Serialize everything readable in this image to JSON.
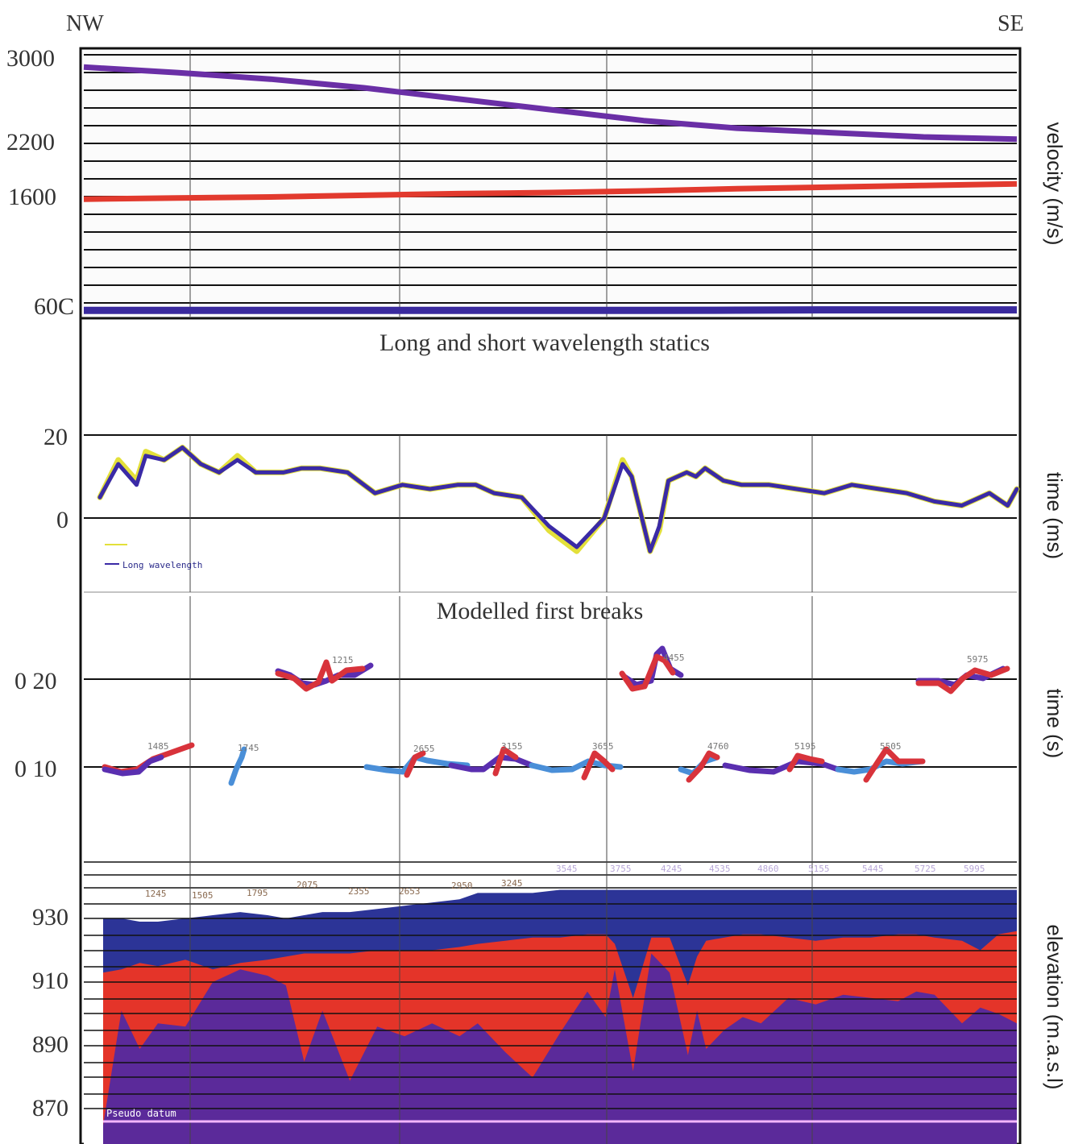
{
  "header": {
    "left": "NW",
    "right": "SE"
  },
  "panels": {
    "velocity": {
      "ylabel": "velocity (m/s)",
      "ticks": [
        "3000",
        "2200",
        "1600",
        "60C"
      ],
      "colors": {
        "v2": "#6a2fa6",
        "v1": "#e23a2e",
        "v0": "#3a2a9e"
      }
    },
    "statics": {
      "title": "Long and short wavelength statics",
      "ylabel": "time (ms)",
      "ticks": [
        "20",
        "0"
      ],
      "legend_long": "Long wavelength",
      "colors": {
        "short": "#e3e03a",
        "long": "#3a2aa6"
      }
    },
    "firstbreaks": {
      "title": "Modelled first breaks",
      "ylabel": "time (s)",
      "ticks": [
        "0 20",
        "0 10"
      ],
      "labels": [
        "1215",
        "4455",
        "5975",
        "1485",
        "1745",
        "2655",
        "3155",
        "3655",
        "4760",
        "5195",
        "5505"
      ],
      "colors": {
        "a": "#d8333b",
        "b": "#5a2fb0",
        "c": "#4a8fd8"
      }
    },
    "elevation": {
      "ylabel": "elevation (m.a.s.l)",
      "ticks": [
        "930",
        "910",
        "890",
        "870"
      ],
      "pseudo_datum": "Pseudo datum",
      "top_labels": [
        "1245",
        "1505",
        "1795",
        "2075",
        "2355",
        "2653",
        "2950",
        "3245",
        "3545",
        "3755",
        "4245",
        "4535",
        "4860",
        "5155",
        "5445",
        "5725",
        "5995"
      ],
      "colors": {
        "top": "#2c3497",
        "middle": "#e43429",
        "bottom": "#5b2a9a",
        "datum": "#f3b5ff"
      }
    }
  },
  "chart_data": [
    {
      "type": "line",
      "ylabel": "velocity (m/s)",
      "x": [
        0,
        0.1,
        0.2,
        0.3,
        0.4,
        0.5,
        0.6,
        0.7,
        0.8,
        0.9,
        1.0
      ],
      "ylim": [
        600,
        3000
      ],
      "series": [
        {
          "values": [
            2850,
            2800,
            2740,
            2660,
            2560,
            2460,
            2360,
            2290,
            2250,
            2210,
            2190
          ]
        },
        {
          "values": [
            1640,
            1650,
            1660,
            1675,
            1690,
            1700,
            1715,
            1735,
            1750,
            1765,
            1780
          ]
        },
        {
          "values": [
            620,
            620,
            620,
            620,
            620,
            620,
            620,
            622,
            625,
            625,
            625
          ]
        }
      ]
    },
    {
      "type": "line",
      "title": "Long and short wavelength statics",
      "ylabel": "time (ms)",
      "x": [
        0,
        0.02,
        0.04,
        0.05,
        0.07,
        0.09,
        0.11,
        0.13,
        0.15,
        0.17,
        0.2,
        0.22,
        0.24,
        0.27,
        0.3,
        0.33,
        0.36,
        0.39,
        0.41,
        0.43,
        0.46,
        0.49,
        0.52,
        0.55,
        0.57,
        0.58,
        0.6,
        0.61,
        0.62,
        0.64,
        0.65,
        0.66,
        0.68,
        0.7,
        0.73,
        0.76,
        0.79,
        0.82,
        0.85,
        0.88,
        0.91,
        0.94,
        0.96,
        0.97,
        0.99,
        1.0
      ],
      "ylim": [
        -15,
        20
      ],
      "series": [
        {
          "values": [
            5,
            14,
            9,
            16,
            14,
            17,
            13,
            11,
            15,
            11,
            11,
            12,
            12,
            11,
            6,
            8,
            7,
            8,
            8,
            6,
            5,
            -3,
            -8,
            0,
            14,
            10,
            -8,
            -3,
            9,
            11,
            10,
            12,
            9,
            8,
            8,
            7,
            6,
            8,
            7,
            6,
            4,
            3,
            5,
            6,
            3,
            7
          ]
        },
        {
          "values": [
            5,
            13,
            8,
            15,
            14,
            17,
            13,
            11,
            14,
            11,
            11,
            12,
            12,
            11,
            6,
            8,
            7,
            8,
            8,
            6,
            5,
            -2,
            -7,
            0,
            13,
            10,
            -8,
            -2,
            9,
            11,
            10,
            12,
            9,
            8,
            8,
            7,
            6,
            8,
            7,
            6,
            4,
            3,
            5,
            6,
            3,
            7
          ]
        }
      ]
    },
    {
      "type": "scatter",
      "title": "Modelled first breaks",
      "ylabel": "time (s)",
      "ylim": [
        0.0,
        0.3
      ]
    },
    {
      "type": "area",
      "ylabel": "elevation (m.a.s.l)",
      "ylim": [
        862,
        942
      ],
      "x": [
        0,
        0.02,
        0.04,
        0.06,
        0.09,
        0.12,
        0.15,
        0.18,
        0.2,
        0.22,
        0.24,
        0.27,
        0.3,
        0.33,
        0.36,
        0.39,
        0.41,
        0.44,
        0.47,
        0.5,
        0.53,
        0.55,
        0.56,
        0.58,
        0.6,
        0.62,
        0.64,
        0.65,
        0.66,
        0.68,
        0.7,
        0.72,
        0.75,
        0.78,
        0.81,
        0.84,
        0.87,
        0.89,
        0.91,
        0.94,
        0.96,
        0.98,
        1.0
      ],
      "series": [
        {
          "values": [
            930,
            930,
            929,
            929,
            930,
            931,
            932,
            931,
            930,
            931,
            932,
            932,
            933,
            934,
            935,
            936,
            938,
            938,
            938,
            939,
            939,
            939,
            939,
            939,
            939,
            939,
            939,
            939,
            939,
            939,
            939,
            939,
            939,
            939,
            939,
            939,
            939,
            939,
            939,
            939,
            939,
            939,
            939
          ]
        },
        {
          "values": [
            913,
            914,
            916,
            915,
            917,
            914,
            916,
            917,
            918,
            919,
            919,
            919,
            920,
            920,
            920,
            921,
            922,
            923,
            924,
            924,
            925,
            925,
            922,
            905,
            924,
            924,
            909,
            918,
            923,
            924,
            925,
            925,
            924,
            923,
            924,
            924,
            925,
            925,
            924,
            923,
            920,
            925,
            926
          ]
        },
        {
          "values": [
            865,
            901,
            889,
            897,
            896,
            910,
            914,
            912,
            909,
            885,
            901,
            879,
            896,
            893,
            897,
            893,
            897,
            888,
            880,
            894,
            907,
            899,
            914,
            882,
            919,
            913,
            887,
            901,
            889,
            895,
            899,
            897,
            905,
            903,
            906,
            905,
            904,
            907,
            906,
            897,
            902,
            900,
            897
          ]
        }
      ]
    }
  ]
}
